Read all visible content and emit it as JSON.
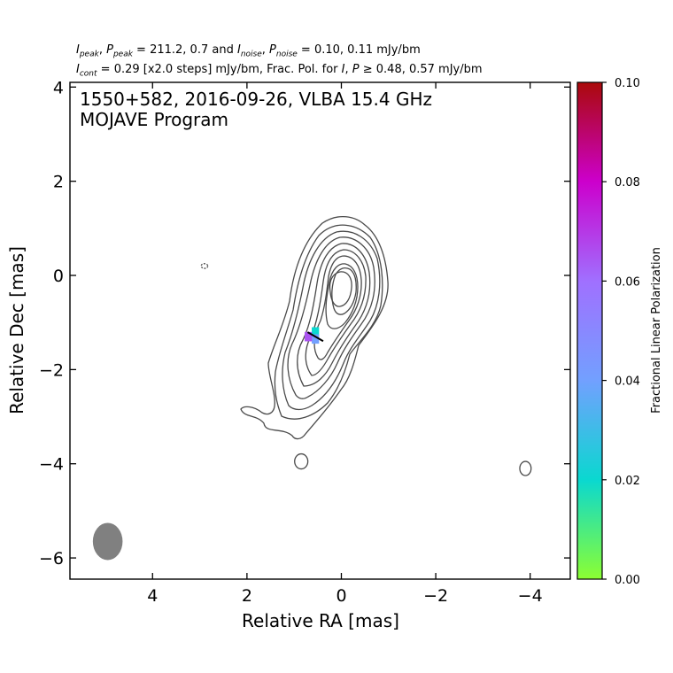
{
  "header": {
    "line1_parts": [
      "I",
      "peak",
      ", ",
      "P",
      "peak",
      " = 211.2, 0.7 and ",
      "I",
      "noise",
      ", ",
      "P",
      "noise",
      " = 0.10, 0.11 mJy/bm"
    ],
    "line2_parts": [
      "I",
      "cont",
      " = 0.29 [x2.0 steps] mJy/bm, Frac. Pol. for ",
      "I",
      ", ",
      "P",
      " ≥ 0.48, 0.57 mJy/bm"
    ]
  },
  "chart_data": {
    "type": "contour",
    "title_line1": "1550+582, 2016-09-26, VLBA 15.4 GHz",
    "title_line2": "MOJAVE Program",
    "xlabel": "Relative RA [mas]",
    "ylabel": "Relative Dec [mas]",
    "xlim": [
      5.75,
      -4.85
    ],
    "ylim": [
      -6.45,
      4.1
    ],
    "x_ticks": [
      4,
      2,
      0,
      -2,
      -4
    ],
    "x_tick_labels": [
      "4",
      "2",
      "0",
      "−2",
      "−4"
    ],
    "y_ticks": [
      4,
      2,
      0,
      -2,
      -4,
      -6
    ],
    "y_tick_labels": [
      "4",
      "2",
      "0",
      "−2",
      "−4",
      "−6"
    ],
    "contour_levels_mJy_per_bm": [
      0.29,
      0.58,
      1.16,
      2.32,
      4.64,
      9.28,
      18.56,
      37.12,
      74.24,
      148.48
    ],
    "contour_color": "#4a4a4a",
    "peak": {
      "ra": 0.05,
      "dec": -0.35
    },
    "extra_islands": [
      {
        "ra": 2.9,
        "dec": 0.2,
        "rx": 0.07,
        "ry": 0.05
      },
      {
        "ra": 0.85,
        "dec": -3.95,
        "rx": 0.14,
        "ry": 0.16
      },
      {
        "ra": -3.9,
        "dec": -4.1,
        "rx": 0.12,
        "ry": 0.15
      }
    ],
    "beam": {
      "ra": 4.95,
      "dec": -5.65,
      "major_mas": 0.79,
      "minor_mas": 0.63,
      "pa_deg": 0,
      "color": "#808080"
    },
    "polarization_pixels": [
      {
        "ra": 0.55,
        "dec": -1.2,
        "frac": 0.02
      },
      {
        "ra": 0.55,
        "dec": -1.35,
        "frac": 0.04
      },
      {
        "ra": 0.7,
        "dec": -1.3,
        "frac": 0.065
      }
    ],
    "evpa_tick": {
      "ra": 0.55,
      "dec": -1.3,
      "length_mas": 0.38,
      "angle_deg": 30
    },
    "colorbar": {
      "label": "Fractional Linear Polarization",
      "range": [
        0.0,
        0.1
      ],
      "ticks": [
        0.0,
        0.02,
        0.04,
        0.06,
        0.08,
        0.1
      ],
      "tick_labels": [
        "0.00",
        "0.02",
        "0.04",
        "0.06",
        "0.08",
        "0.10"
      ],
      "stops": [
        "#8cff32",
        "#0ad8d0",
        "#72a0ff",
        "#a070ff",
        "#cc00cc",
        "#aa0a0a"
      ]
    }
  }
}
